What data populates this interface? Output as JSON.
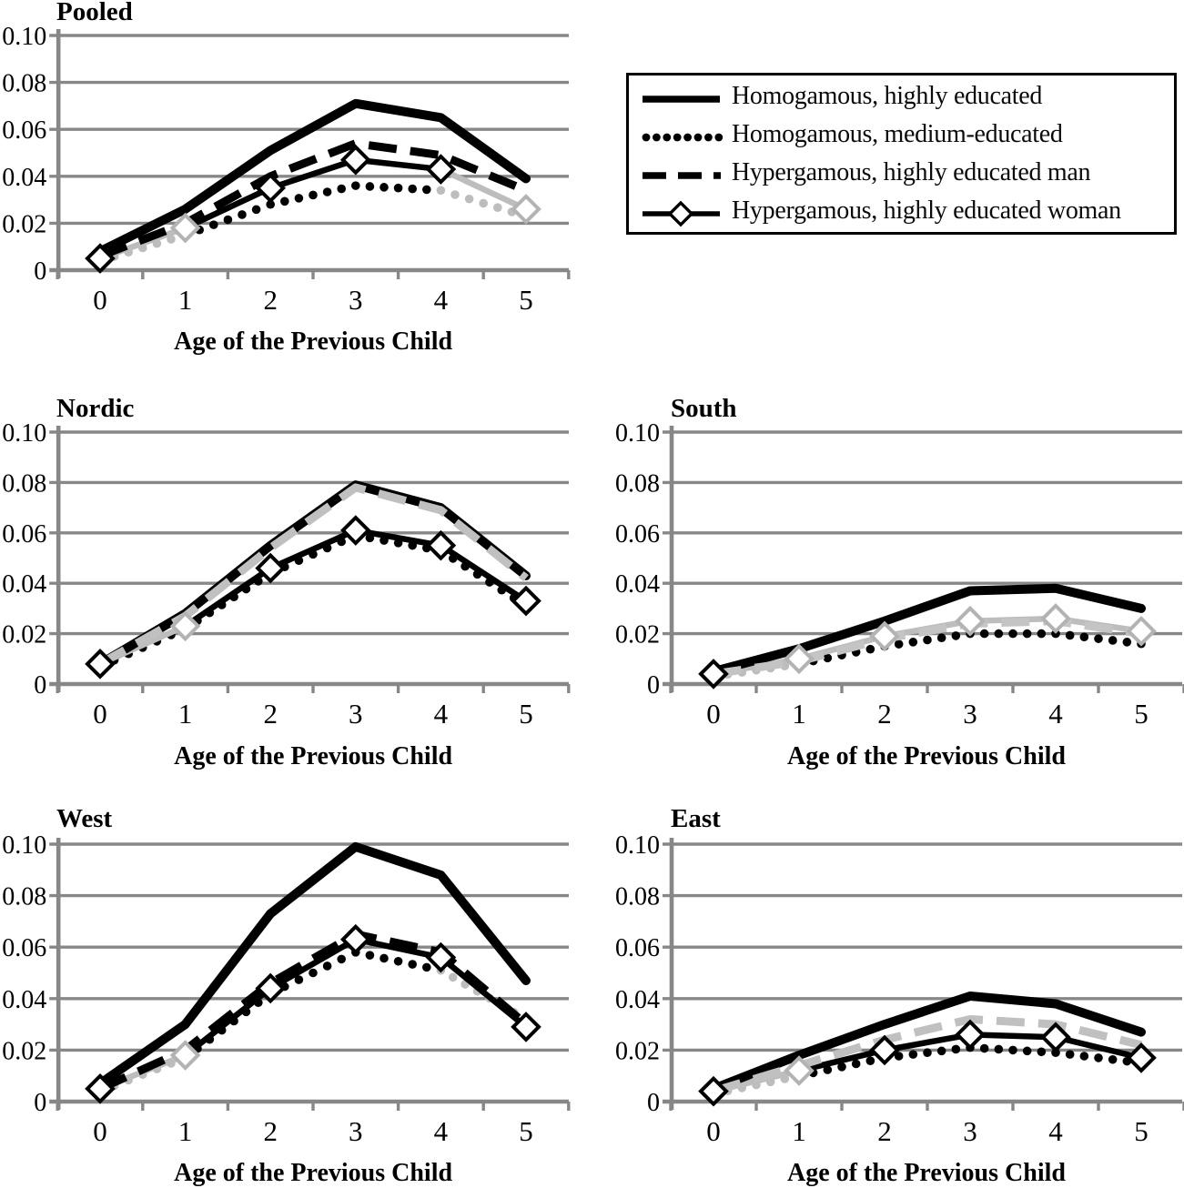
{
  "axes": {
    "y_tick_labels": [
      "0.10",
      "0.08",
      "0.06",
      "0.04",
      "0.02",
      "0"
    ],
    "x_tick_labels": [
      "0",
      "1",
      "2",
      "3",
      "4",
      "5"
    ],
    "x_axis_title": "Age of the Previous Child"
  },
  "legend": {
    "position": "top-right",
    "items": [
      {
        "label": "Homogamous, highly educated",
        "style": "solid"
      },
      {
        "label": "Homogamous, medium-educated",
        "style": "dotted"
      },
      {
        "label": "Hypergamous, highly educated man",
        "style": "dashed"
      },
      {
        "label": "Hypergamous, highly educated woman",
        "style": "diamond"
      }
    ]
  },
  "colors": {
    "series_black": "#000000",
    "series_gray": "#bdbdbd",
    "marker_gray": "#b3b3b3",
    "grid_gray": "#878787"
  },
  "chart_data": [
    {
      "type": "line",
      "title": "Pooled",
      "x_axis_title": "Age of the Previous Child",
      "x": [
        0,
        1,
        2,
        3,
        4,
        5
      ],
      "ylim": [
        0,
        0.1
      ],
      "y_ticks": [
        0,
        0.02,
        0.04,
        0.06,
        0.08,
        0.1
      ],
      "grid": true,
      "series": [
        {
          "name": "Homogamous, highly educated",
          "style": "solid",
          "color": "#000000",
          "values": [
            0.008,
            0.026,
            0.051,
            0.071,
            0.065,
            0.039
          ]
        },
        {
          "name": "Homogamous, medium-educated",
          "style": "dotted",
          "color": [
            "#bdbdbd",
            "#000000",
            "#000000",
            "#000000",
            "#bdbdbd"
          ],
          "values": [
            0.004,
            0.015,
            0.028,
            0.036,
            0.034,
            0.023
          ]
        },
        {
          "name": "Hypergamous, highly educated man",
          "style": "dashed",
          "color": "#000000",
          "values": [
            0.006,
            0.02,
            0.04,
            0.054,
            0.049,
            0.034
          ]
        },
        {
          "name": "Hypergamous, highly educated woman",
          "style": "diamond",
          "color": [
            "#bdbdbd",
            "#000000",
            "#000000",
            "#000000",
            "#bdbdbd"
          ],
          "marker_outline_colors": [
            "#000000",
            "#b3b3b3",
            "#000000",
            "#000000",
            "#000000",
            "#b3b3b3"
          ],
          "values": [
            0.005,
            0.018,
            0.035,
            0.047,
            0.043,
            0.026
          ]
        }
      ]
    },
    {
      "type": "line",
      "title": "Nordic",
      "x_axis_title": "Age of the Previous Child",
      "x": [
        0,
        1,
        2,
        3,
        4,
        5
      ],
      "ylim": [
        0,
        0.1
      ],
      "y_ticks": [
        0,
        0.02,
        0.04,
        0.06,
        0.08,
        0.1
      ],
      "grid": true,
      "series": [
        {
          "name": "Homogamous, highly educated",
          "style": "solid",
          "color": "#000000",
          "values": [
            0.008,
            0.028,
            0.055,
            0.079,
            0.07,
            0.043
          ]
        },
        {
          "name": "Homogamous, medium-educated",
          "style": "dotted",
          "color": "#000000",
          "values": [
            0.007,
            0.022,
            0.044,
            0.059,
            0.053,
            0.031
          ]
        },
        {
          "name": "Hypergamous, highly educated man",
          "style": "dashed",
          "color": "#c0c0c0",
          "values": [
            0.008,
            0.027,
            0.054,
            0.078,
            0.069,
            0.042
          ]
        },
        {
          "name": "Hypergamous, highly educated woman",
          "style": "diamond",
          "color": [
            "#bdbdbd",
            "#000000",
            "#000000",
            "#000000",
            "#000000"
          ],
          "marker_outline_colors": [
            "#000000",
            "#b3b3b3",
            "#000000",
            "#000000",
            "#000000",
            "#000000"
          ],
          "values": [
            0.008,
            0.023,
            0.046,
            0.061,
            0.055,
            0.033
          ]
        }
      ]
    },
    {
      "type": "line",
      "title": "South",
      "x_axis_title": "Age of the Previous Child",
      "x": [
        0,
        1,
        2,
        3,
        4,
        5
      ],
      "ylim": [
        0,
        0.1
      ],
      "y_ticks": [
        0,
        0.02,
        0.04,
        0.06,
        0.08,
        0.1
      ],
      "grid": true,
      "series": [
        {
          "name": "Homogamous, highly educated",
          "style": "solid",
          "color": "#000000",
          "values": [
            0.005,
            0.014,
            0.025,
            0.037,
            0.038,
            0.03
          ]
        },
        {
          "name": "Homogamous, medium-educated",
          "style": "dotted",
          "color": [
            "#bdbdbd",
            "#000000",
            "#000000",
            "#000000",
            "#000000"
          ],
          "values": [
            0.003,
            0.008,
            0.015,
            0.02,
            0.02,
            0.016
          ]
        },
        {
          "name": "Hypergamous, highly educated man",
          "style": "dashed",
          "color": "#c4c4c4",
          "values": [
            0.004,
            0.009,
            0.018,
            0.024,
            0.025,
            0.02
          ]
        },
        {
          "name": "Hypergamous, highly educated woman",
          "style": "diamond",
          "color": "#bdbdbd",
          "marker_outline_colors": [
            "#000000",
            "#b3b3b3",
            "#b3b3b3",
            "#b3b3b3",
            "#b3b3b3",
            "#b3b3b3"
          ],
          "values": [
            0.004,
            0.01,
            0.019,
            0.025,
            0.026,
            0.021
          ]
        }
      ]
    },
    {
      "type": "line",
      "title": "West",
      "x_axis_title": "Age of the Previous Child",
      "x": [
        0,
        1,
        2,
        3,
        4,
        5
      ],
      "ylim": [
        0,
        0.1
      ],
      "y_ticks": [
        0,
        0.02,
        0.04,
        0.06,
        0.08,
        0.1
      ],
      "grid": true,
      "series": [
        {
          "name": "Homogamous, highly educated",
          "style": "solid",
          "color": "#000000",
          "values": [
            0.007,
            0.03,
            0.073,
            0.099,
            0.088,
            0.047
          ]
        },
        {
          "name": "Homogamous, medium-educated",
          "style": "dotted",
          "color": [
            "#bdbdbd",
            "#000000",
            "#000000",
            "#000000",
            "#bdbdbd"
          ],
          "values": [
            0.004,
            0.017,
            0.042,
            0.058,
            0.051,
            0.032
          ]
        },
        {
          "name": "Hypergamous, highly educated man",
          "style": "dashed",
          "color": "#000000",
          "values": [
            0.005,
            0.02,
            0.046,
            0.065,
            0.058,
            0.03
          ]
        },
        {
          "name": "Hypergamous, highly educated woman",
          "style": "diamond",
          "color": [
            "#bdbdbd",
            "#000000",
            "#000000",
            "#000000",
            "#000000"
          ],
          "marker_outline_colors": [
            "#000000",
            "#b3b3b3",
            "#000000",
            "#000000",
            "#000000",
            "#000000"
          ],
          "values": [
            0.005,
            0.018,
            0.044,
            0.063,
            0.056,
            0.029
          ]
        }
      ]
    },
    {
      "type": "line",
      "title": "East",
      "x_axis_title": "Age of the Previous Child",
      "x": [
        0,
        1,
        2,
        3,
        4,
        5
      ],
      "ylim": [
        0,
        0.1
      ],
      "y_ticks": [
        0,
        0.02,
        0.04,
        0.06,
        0.08,
        0.1
      ],
      "grid": true,
      "series": [
        {
          "name": "Homogamous, highly educated",
          "style": "solid",
          "color": "#000000",
          "values": [
            0.005,
            0.018,
            0.03,
            0.041,
            0.038,
            0.027
          ]
        },
        {
          "name": "Homogamous, medium-educated",
          "style": "dotted",
          "color": [
            "#bdbdbd",
            "#000000",
            "#000000",
            "#000000",
            "#000000"
          ],
          "values": [
            0.003,
            0.01,
            0.017,
            0.021,
            0.019,
            0.015
          ]
        },
        {
          "name": "Hypergamous, highly educated man",
          "style": "dashed",
          "color": "#c0c0c0",
          "values": [
            0.004,
            0.014,
            0.024,
            0.032,
            0.03,
            0.022
          ]
        },
        {
          "name": "Hypergamous, highly educated woman",
          "style": "diamond",
          "color": [
            "#bdbdbd",
            "#000000",
            "#000000",
            "#000000",
            "#000000"
          ],
          "marker_outline_colors": [
            "#000000",
            "#b3b3b3",
            "#000000",
            "#000000",
            "#000000",
            "#000000"
          ],
          "values": [
            0.004,
            0.012,
            0.02,
            0.026,
            0.025,
            0.017
          ]
        }
      ]
    }
  ]
}
